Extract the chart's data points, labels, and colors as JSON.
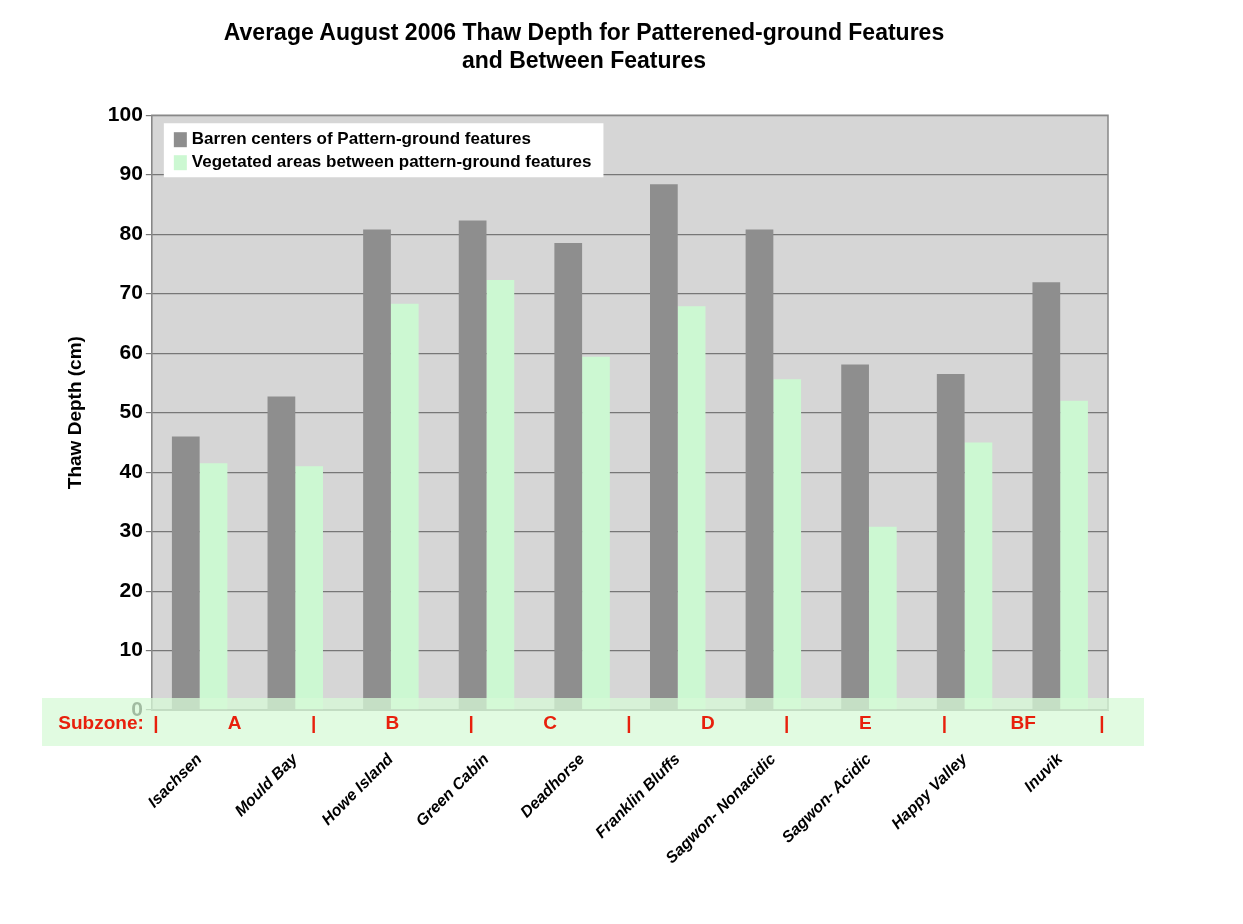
{
  "chart_data": {
    "type": "bar",
    "title": [
      "Average August 2006 Thaw Depth for Patterened-ground Features",
      "and Between Features"
    ],
    "ylabel": "Thaw Depth (cm)",
    "categories": [
      "Isachsen",
      "Mould Bay",
      "Howe Island",
      "Green Cabin",
      "Deadhorse",
      "Franklin Bluffs",
      "Sagwon- Nonacidic",
      "Sagwon- Acidic",
      "Happy Valley",
      "Inuvik"
    ],
    "series": [
      {
        "name": "Barren centers of Pattern-ground features",
        "color": "#8e8e8e",
        "values": [
          46,
          52.7,
          80.8,
          82.3,
          78.5,
          88.4,
          80.8,
          58.1,
          56.5,
          71.9
        ]
      },
      {
        "name": "Vegetated areas between pattern-ground features",
        "color": "#ccf8d2",
        "values": [
          41.5,
          41,
          68.3,
          72.3,
          59.4,
          67.9,
          55.6,
          30.8,
          45,
          52
        ]
      }
    ],
    "ylim": [
      0,
      100
    ],
    "yticks": [
      0,
      10,
      20,
      30,
      40,
      50,
      60,
      70,
      80,
      90,
      100
    ],
    "grid": "y",
    "legend": "top left",
    "annotations": [
      "Subzone:",
      "|",
      "A",
      "|",
      "B",
      "|",
      "C",
      "|",
      "D",
      "|",
      "E",
      "|",
      "BF",
      "|"
    ]
  }
}
